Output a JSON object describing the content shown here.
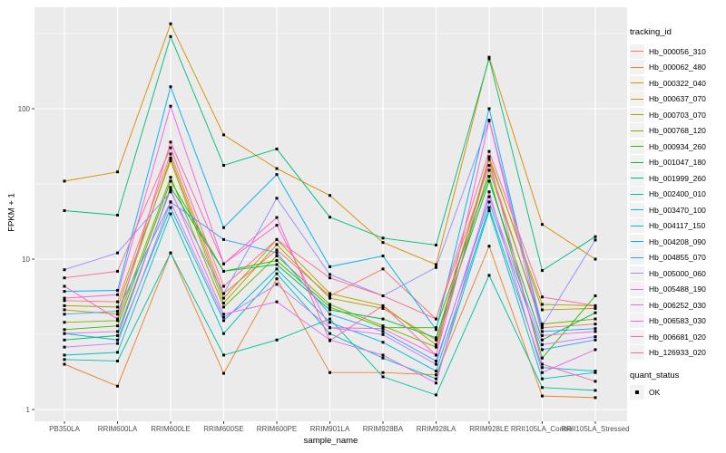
{
  "figure": {
    "background": "#FFFFFF",
    "panel_background": "#EBEBEB",
    "gridline_color": "#FFFFFF",
    "tick_color": "#333333",
    "tick_label_color": "#4D4D4D",
    "point_color": "#000000"
  },
  "y_axis": {
    "title": "FPKM + 1",
    "scale": "log10",
    "tick_labels": [
      "1",
      "10",
      "100"
    ]
  },
  "x_axis": {
    "title": "sample_name",
    "tick_labels": [
      "PB350LA",
      "RRIM600LA",
      "RRIM600LE",
      "RRIM600SE",
      "RRIM600PE",
      "RRIM901LA",
      "RRIM928BA",
      "RRIM928LA",
      "RRIM928LE",
      "RRII105LA_Control",
      "RRII105LA_Stressed"
    ]
  },
  "legends": {
    "tracking_id": {
      "title": "tracking_id"
    },
    "quant_status": {
      "title": "quant_status",
      "items": [
        {
          "label": "OK"
        }
      ]
    }
  },
  "chart_data": {
    "type": "line",
    "x_type": "categorical",
    "y_scale": "log10",
    "xlabel": "sample_name",
    "ylabel": "FPKM + 1",
    "y_ticks": [
      1,
      10,
      100
    ],
    "ylim": [
      1,
      460
    ],
    "grid": true,
    "legend_position": "right",
    "point_shape": "small black square (quant_status = OK)",
    "categories": [
      "PB350LA",
      "RRIM600LA",
      "RRIM600LE",
      "RRIM600SE",
      "RRIM600PE",
      "RRIM901LA",
      "RRIM928BA",
      "RRIM928LA",
      "RRIM928LE",
      "RRII105LA_Control",
      "RRII105LA_Stressed"
    ],
    "series": [
      {
        "name": "Hb_000056_310",
        "color": "#F8766D",
        "values": [
          5.3,
          5.2,
          50,
          5.9,
          11.5,
          5.7,
          8.6,
          4.0,
          42,
          3.5,
          3.7
        ]
      },
      {
        "name": "Hb_000062_480",
        "color": "#EA8331",
        "values": [
          2.0,
          1.43,
          11,
          1.74,
          7.4,
          1.76,
          1.76,
          1.7,
          12.2,
          1.23,
          1.2
        ]
      },
      {
        "name": "Hb_000322_040",
        "color": "#D89000",
        "values": [
          33,
          38,
          367,
          67,
          40,
          26.5,
          12.9,
          9.2,
          220,
          17,
          10
        ]
      },
      {
        "name": "Hb_000637_070",
        "color": "#C09B00",
        "values": [
          4.6,
          4.3,
          47,
          5.5,
          13.5,
          5.9,
          4.9,
          2.7,
          48,
          4.6,
          4.7
        ]
      },
      {
        "name": "Hb_000703_070",
        "color": "#A3A500",
        "values": [
          4.9,
          4.8,
          45,
          5.1,
          12.5,
          5.5,
          4.7,
          2.9,
          46,
          5.0,
          4.9
        ]
      },
      {
        "name": "Hb_000768_120",
        "color": "#7CAE00",
        "values": [
          3.8,
          3.9,
          35,
          4.8,
          10.5,
          5.0,
          3.6,
          2.6,
          39,
          3.7,
          4.0
        ]
      },
      {
        "name": "Hb_000934_260",
        "color": "#39B600",
        "values": [
          3.4,
          3.6,
          33,
          8.3,
          9.8,
          4.8,
          3.5,
          3.5,
          35.5,
          2.2,
          5.7
        ]
      },
      {
        "name": "Hb_001047_180",
        "color": "#00BB4E",
        "values": [
          2.9,
          3.1,
          30,
          8.3,
          9.2,
          4.6,
          4.0,
          3.0,
          33,
          2.9,
          4.4
        ]
      },
      {
        "name": "Hb_001999_260",
        "color": "#00BF7D",
        "values": [
          21,
          19.6,
          302,
          42,
          54,
          19,
          13.8,
          12.4,
          215,
          8.4,
          14.1
        ]
      },
      {
        "name": "Hb_002400_010",
        "color": "#00C1A3",
        "values": [
          2.15,
          2.1,
          11,
          2.3,
          2.9,
          4.0,
          1.65,
          1.25,
          7.8,
          1.4,
          1.34
        ]
      },
      {
        "name": "Hb_003470_100",
        "color": "#00BFC4",
        "values": [
          2.3,
          2.4,
          20,
          3.2,
          8.0,
          3.2,
          2.2,
          1.6,
          21,
          1.6,
          1.76
        ]
      },
      {
        "name": "Hb_004117_150",
        "color": "#00BBDA",
        "values": [
          3.2,
          2.9,
          22,
          3.9,
          8.6,
          3.8,
          2.8,
          1.8,
          22,
          1.9,
          1.8
        ]
      },
      {
        "name": "Hb_004208_090",
        "color": "#00B0F6",
        "values": [
          6.1,
          6.2,
          140,
          16.2,
          36.5,
          8.9,
          10.5,
          3.4,
          100,
          3.3,
          3.45
        ]
      },
      {
        "name": "Hb_004855_070",
        "color": "#35A2FF",
        "values": [
          4.3,
          4.5,
          24,
          13.5,
          11,
          4.3,
          3.3,
          2.1,
          24,
          2.5,
          2.9
        ]
      },
      {
        "name": "Hb_005000_060",
        "color": "#9590FF",
        "values": [
          8.5,
          11,
          28,
          5.9,
          25.4,
          7.9,
          5.7,
          8.8,
          84,
          3.6,
          13.4
        ]
      },
      {
        "name": "Hb_005488_190",
        "color": "#C77CFF",
        "values": [
          2.6,
          2.75,
          24,
          4.1,
          6.8,
          3.5,
          3.15,
          2.0,
          26,
          2.7,
          3.05
        ]
      },
      {
        "name": "Hb_006252_030",
        "color": "#E76BF3",
        "values": [
          3.2,
          3.3,
          29,
          4.3,
          5.2,
          2.9,
          2.3,
          1.5,
          28,
          1.76,
          2.5
        ]
      },
      {
        "name": "Hb_006583_030",
        "color": "#FA62DB",
        "values": [
          5.5,
          5.8,
          104,
          9.3,
          16.8,
          3.5,
          3.45,
          2.3,
          83,
          3.1,
          3.3
        ]
      },
      {
        "name": "Hb_006681_020",
        "color": "#FF62BC",
        "values": [
          6.6,
          4.0,
          60,
          9.3,
          18.9,
          2.87,
          4.9,
          2.3,
          46,
          2.0,
          1.54
        ]
      },
      {
        "name": "Hb_126933_020",
        "color": "#FF6A98",
        "values": [
          7.5,
          8.3,
          55,
          6.6,
          13.5,
          7.5,
          5.7,
          4.0,
          52,
          5.6,
          4.9
        ]
      }
    ]
  }
}
